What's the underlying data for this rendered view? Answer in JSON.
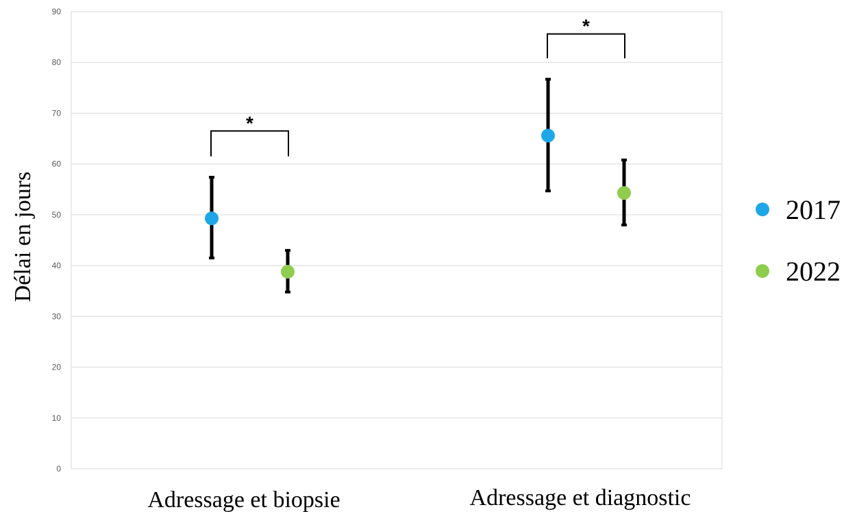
{
  "chart_data": {
    "type": "scatter",
    "title": "",
    "xlabel": "",
    "ylabel": "Délai en jours",
    "ylim": [
      0,
      90
    ],
    "yticks": [
      0,
      10,
      20,
      30,
      40,
      50,
      60,
      70,
      80,
      90
    ],
    "grid": true,
    "legend_position": "right",
    "categories": [
      "Adressage et biopsie",
      "Adressage et diagnostic"
    ],
    "series": [
      {
        "name": "2017",
        "color": "#1ea7e6",
        "values": [
          49.3,
          65.6
        ],
        "error_low": [
          41.5,
          54.7
        ],
        "error_high": [
          57.4,
          76.7
        ]
      },
      {
        "name": "2022",
        "color": "#8fcd4e",
        "values": [
          38.8,
          54.3
        ],
        "error_low": [
          34.8,
          48.0
        ],
        "error_high": [
          43.0,
          60.8
        ]
      }
    ],
    "significance": [
      {
        "category": "Adressage et biopsie",
        "label": "*",
        "level": 66.5,
        "drop_to": 61.5
      },
      {
        "category": "Adressage et diagnostic",
        "label": "*",
        "level": 85.6,
        "drop_to": 80.8
      }
    ]
  }
}
